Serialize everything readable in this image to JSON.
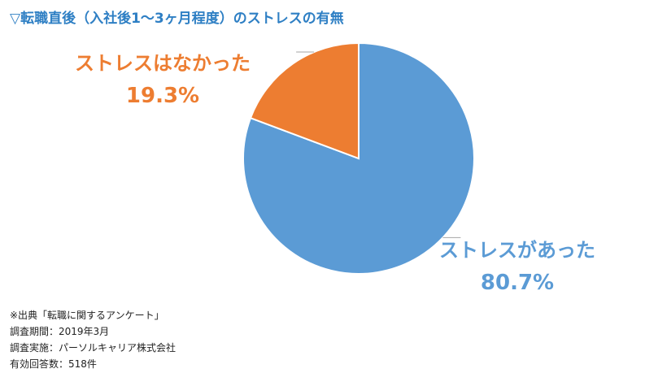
{
  "title": "▽転職直後（入社後1～3ヶ月程度）のストレスの有無",
  "chart_data": {
    "type": "pie",
    "slices": [
      {
        "label": "ストレスがあった",
        "value": 80.7,
        "value_label": "80.7%",
        "color": "#5b9bd5"
      },
      {
        "label": "ストレスはなかった",
        "value": 19.3,
        "value_label": "19.3%",
        "color": "#ed7d31"
      }
    ],
    "start_angle_deg": 0,
    "direction": "clockwise"
  },
  "notes": [
    "※出典「転職に関するアンケート」",
    "調査期間：2019年3月",
    "調査実施：パーソルキャリア株式会社",
    "有効回答数：518件"
  ]
}
